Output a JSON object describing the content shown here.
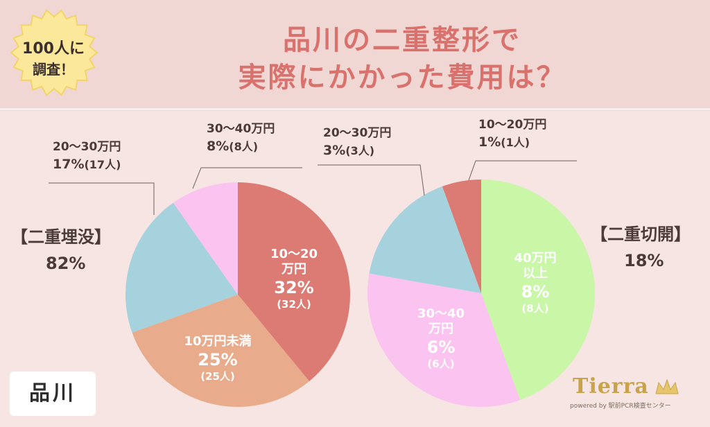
{
  "title": {
    "line1": "品川の二重整形で",
    "line2": "実際にかかった費用は？"
  },
  "badge": {
    "line1": "100人に",
    "line2": "調査！"
  },
  "location": "品川",
  "logo": {
    "brand": "Tierra",
    "sub": "powered by 駅前PCR検査センター"
  },
  "colors": {
    "title": "#d9716c",
    "header": "#f0d7d4",
    "background": "#f7e5e3",
    "badge": "#fbe89a"
  },
  "chart_data": [
    {
      "type": "pie",
      "title": "【二重埋没】",
      "total_percent": "82%",
      "slices": [
        {
          "label": "10〜20万円",
          "label_lines": [
            "10〜20",
            "万円"
          ],
          "value": 32,
          "percent_text": "32%",
          "count": "(32人)",
          "color": "#dc7b74",
          "inside": true
        },
        {
          "label": "10万円未満",
          "label_lines": [
            "10万円未満"
          ],
          "value": 25,
          "percent_text": "25%",
          "count": "(25人)",
          "color": "#e8ab8b",
          "inside": true
        },
        {
          "label": "20〜30万円",
          "value": 17,
          "percent_text": "17%",
          "count": "(17人)",
          "color": "#a6d2de",
          "inside": false
        },
        {
          "label": "30〜40万円",
          "value": 8,
          "percent_text": "8%",
          "count": "(8人)",
          "color": "#fbc3ef",
          "inside": false
        }
      ]
    },
    {
      "type": "pie",
      "title": "【二重切開】",
      "total_percent": "18%",
      "slices": [
        {
          "label": "40万円以上",
          "label_lines": [
            "40万円",
            "以上"
          ],
          "value": 8,
          "percent_text": "8%",
          "count": "(8人)",
          "color": "#c9f6a7",
          "inside": true
        },
        {
          "label": "30〜40万円",
          "label_lines": [
            "30〜40",
            "万円"
          ],
          "value": 6,
          "percent_text": "6%",
          "count": "(6人)",
          "color": "#fbc3ef",
          "inside": true
        },
        {
          "label": "20〜30万円",
          "value": 3,
          "percent_text": "3%",
          "count": "(3人)",
          "color": "#a6d2de",
          "inside": false
        },
        {
          "label": "10〜20万円",
          "value": 1,
          "percent_text": "1%",
          "count": "(1人)",
          "color": "#dc7b74",
          "inside": false
        }
      ]
    }
  ]
}
